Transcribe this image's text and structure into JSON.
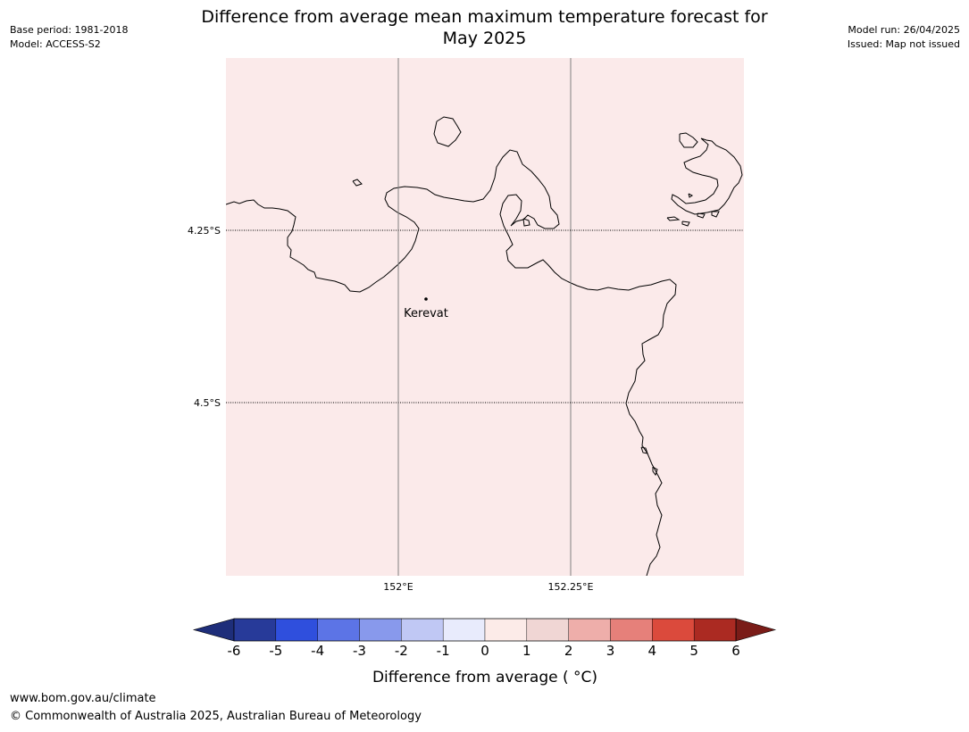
{
  "title_lines": [
    "Difference from average mean maximum temperature forecast for",
    "May 2025"
  ],
  "meta_left": {
    "base_period": "Base period: 1981-2018",
    "model": "Model: ACCESS-S2"
  },
  "meta_right": {
    "model_run": "Model run: 26/04/2025",
    "issued": "Issued: Map not issued"
  },
  "map": {
    "fill_color": "#fbeaea",
    "coastline_color": "#000000",
    "lon_gridlines": [
      {
        "value": 152.0,
        "label": "152°E"
      },
      {
        "value": 152.25,
        "label": "152.25°E"
      }
    ],
    "lat_gridlines": [
      {
        "value": -4.25,
        "label": "4.25°S"
      },
      {
        "value": -4.5,
        "label": "4.5°S"
      }
    ],
    "places": [
      {
        "name": "Kerevat"
      }
    ]
  },
  "colorbar": {
    "label": "Difference from average ( °C)",
    "tick_labels": [
      "-6",
      "-5",
      "-4",
      "-3",
      "-2",
      "-1",
      "0",
      "1",
      "2",
      "3",
      "4",
      "5",
      "6"
    ],
    "colors": [
      "#273a99",
      "#2f4fdd",
      "#5c74e6",
      "#8899ec",
      "#c0c8f4",
      "#e8ebfc",
      "#fcebe8",
      "#f0d6d4",
      "#eeaeaa",
      "#e6807a",
      "#db4a3c",
      "#ab2a22"
    ],
    "extend_low_color": "#1e2e7a",
    "extend_high_color": "#7a1c18"
  },
  "footer": {
    "url": "www.bom.gov.au/climate",
    "copyright": "© Commonwealth of Australia 2025, Australian Bureau of Meteorology"
  }
}
